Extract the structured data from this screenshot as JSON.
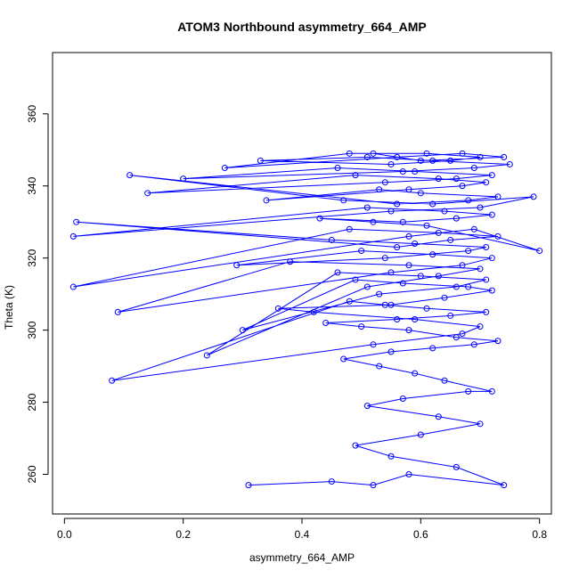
{
  "chart_data": {
    "type": "scatter",
    "title": "ATOM3 Northbound asymmetry_664_AMP",
    "xlabel": "asymmetry_664_AMP",
    "ylabel": "Theta (K)",
    "xlim": [
      -0.02,
      0.82
    ],
    "ylim": [
      249,
      377
    ],
    "xticks": [
      0.0,
      0.2,
      0.4,
      0.6,
      0.8
    ],
    "xtick_labels": [
      "0.0",
      "0.2",
      "0.4",
      "0.6",
      "0.8"
    ],
    "yticks": [
      260,
      280,
      300,
      320,
      340,
      360
    ],
    "ytick_labels": [
      "260",
      "280",
      "300",
      "320",
      "340",
      "360"
    ],
    "grid": false,
    "connected": true,
    "marker": "open-circle",
    "color": "#0000ff",
    "series": [
      {
        "x": [
          0.31,
          0.45,
          0.52,
          0.58,
          0.74,
          0.66,
          0.55,
          0.49,
          0.6,
          0.7,
          0.63,
          0.51,
          0.57,
          0.68,
          0.72,
          0.64,
          0.59,
          0.53,
          0.47,
          0.55,
          0.62,
          0.69,
          0.73,
          0.66,
          0.58,
          0.5,
          0.44,
          0.56,
          0.65,
          0.71,
          0.61,
          0.54,
          0.48,
          0.08,
          0.52,
          0.67,
          0.7,
          0.59,
          0.42,
          0.36,
          0.55,
          0.64,
          0.72,
          0.68,
          0.57,
          0.49,
          0.3,
          0.53,
          0.66,
          0.71,
          0.6,
          0.46,
          0.24,
          0.51,
          0.63,
          0.7,
          0.58,
          0.38,
          0.09,
          0.55,
          0.67,
          0.72,
          0.62,
          0.5,
          0.29,
          0.54,
          0.68,
          0.71,
          0.59,
          0.45,
          0.02,
          0.56,
          0.65,
          0.73,
          0.63,
          0.48,
          0.015,
          0.58,
          0.69,
          0.8,
          0.61,
          0.52,
          0.43,
          0.57,
          0.66,
          0.72,
          0.64,
          0.51,
          0.015,
          0.55,
          0.7,
          0.79,
          0.62,
          0.47,
          0.11,
          0.56,
          0.68,
          0.73,
          0.6,
          0.53,
          0.34,
          0.58,
          0.67,
          0.71,
          0.63,
          0.49,
          0.14,
          0.54,
          0.66,
          0.72,
          0.59,
          0.46,
          0.2,
          0.57,
          0.69,
          0.75,
          0.62,
          0.51,
          0.33,
          0.55,
          0.65,
          0.7,
          0.61,
          0.48,
          0.27,
          0.56,
          0.67,
          0.74,
          0.6,
          0.52
        ],
        "y": [
          257,
          258,
          257,
          260,
          257,
          262,
          265,
          268,
          271,
          274,
          276,
          279,
          281,
          283,
          283,
          286,
          288,
          290,
          292,
          294,
          295,
          296,
          297,
          298,
          300,
          301,
          302,
          303,
          304,
          305,
          306,
          307,
          308,
          286,
          296,
          299,
          301,
          303,
          305,
          306,
          307,
          309,
          311,
          312,
          313,
          314,
          300,
          310,
          312,
          314,
          315,
          316,
          293,
          312,
          315,
          317,
          318,
          319,
          305,
          316,
          318,
          320,
          321,
          322,
          318,
          320,
          322,
          323,
          324,
          325,
          330,
          323,
          325,
          326,
          327,
          328,
          312,
          326,
          328,
          322,
          329,
          330,
          331,
          330,
          331,
          332,
          333,
          334,
          326,
          333,
          334,
          337,
          335,
          336,
          343,
          335,
          336,
          337,
          338,
          339,
          336,
          339,
          340,
          341,
          342,
          343,
          338,
          341,
          342,
          343,
          344,
          345,
          342,
          344,
          345,
          346,
          347,
          348,
          347,
          346,
          347,
          348,
          349,
          349,
          345,
          348,
          349,
          348,
          347,
          349
        ]
      }
    ]
  }
}
